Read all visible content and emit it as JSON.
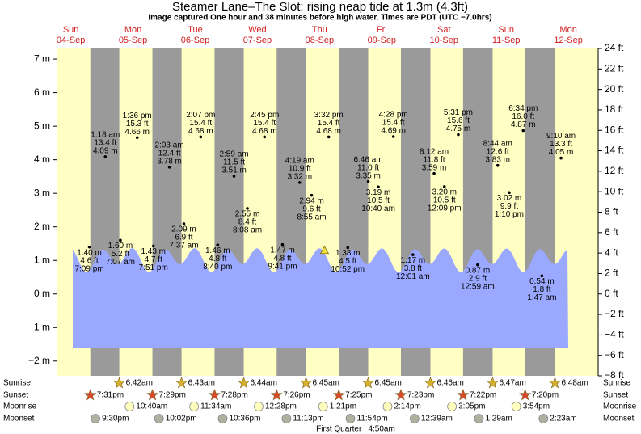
{
  "chart_data": {
    "type": "tide",
    "title": "Steamer Lane–The Slot: rising  neap tide at 1.3m (4.3ft)",
    "subtitle": "Image captured One hour and 38 minutes before high water. Times are PDT (UTC −7.0hrs)",
    "days": {
      "names": [
        "Sun",
        "Mon",
        "Tue",
        "Wed",
        "Thu",
        "Fri",
        "Sat",
        "Sun",
        "Mon"
      ],
      "dates": [
        "04-Sep",
        "05-Sep",
        "06-Sep",
        "07-Sep",
        "08-Sep",
        "09-Sep",
        "10-Sep",
        "11-Sep",
        "12-Sep"
      ],
      "x": [
        12,
        36,
        60,
        84,
        108,
        132,
        156,
        180,
        204
      ]
    },
    "xlim": [
      6.5,
      215.5
    ],
    "ylim": [
      -2.4384,
      7.3152
    ],
    "yticks": [
      {
        "value": -2,
        "label": "−2 m"
      },
      {
        "value": -1,
        "label": "−1 m"
      },
      {
        "value": 0,
        "label": "0 m"
      },
      {
        "value": 1,
        "label": "1 m"
      },
      {
        "value": 2,
        "label": "2 m"
      },
      {
        "value": 3,
        "label": "3 m"
      },
      {
        "value": 4,
        "label": "4 m"
      },
      {
        "value": 5,
        "label": "5 m"
      },
      {
        "value": 6,
        "label": "6 m"
      },
      {
        "value": 7,
        "label": "7 m"
      }
    ],
    "y2lim": [
      -8,
      24
    ],
    "y2ticks": [
      {
        "value": -8,
        "label": "−8 ft"
      },
      {
        "value": -6,
        "label": "−6 ft"
      },
      {
        "value": -4,
        "label": "−4 ft"
      },
      {
        "value": -2,
        "label": "−2 ft"
      },
      {
        "value": 0,
        "label": "0 ft"
      },
      {
        "value": 2,
        "label": "2 ft"
      },
      {
        "value": 4,
        "label": "4 ft"
      },
      {
        "value": 6,
        "label": "6 ft"
      },
      {
        "value": 8,
        "label": "8 ft"
      },
      {
        "value": 10,
        "label": "10 ft"
      },
      {
        "value": 12,
        "label": "12 ft"
      },
      {
        "value": 14,
        "label": "14 ft"
      },
      {
        "value": 16,
        "label": "16 ft"
      },
      {
        "value": 18,
        "label": "18 ft"
      },
      {
        "value": 20,
        "label": "20 ft"
      },
      {
        "value": 22,
        "label": "22 ft"
      },
      {
        "value": 24,
        "label": "24 ft"
      }
    ],
    "tides": {
      "x": [
        19.15,
        25.3,
        31.12,
        37.6,
        43.85,
        50.05,
        55.62,
        62.12,
        68.67,
        74.98,
        80.13,
        86.75,
        93.68,
        100.32,
        104.92,
        111.53,
        118.87,
        126.77,
        130.67,
        136.47,
        144.02,
        152.2,
        156.15,
        161.52,
        168.98,
        176.73,
        181.17,
        186.57,
        193.78,
        201.17
      ],
      "values": [
        1.4,
        4.09,
        1.6,
        4.66,
        1.43,
        3.78,
        2.09,
        4.68,
        1.46,
        3.51,
        2.55,
        4.68,
        1.47,
        3.32,
        2.94,
        4.68,
        1.38,
        3.35,
        3.19,
        4.69,
        1.17,
        3.59,
        3.2,
        4.75,
        0.87,
        3.83,
        3.02,
        4.87,
        0.54,
        4.05
      ],
      "value_labels": [
        "1.40 m",
        "4.09 m",
        "1.60 m",
        "4.66 m",
        "1.43 m",
        "3.78 m",
        "2.09 m",
        "4.68 m",
        "1.46 m",
        "3.51 m",
        "2.55 m",
        "4.68 m",
        "1.47 m",
        "3.32 m",
        "2.94 m",
        "4.68 m",
        "1.38 m",
        "3.35 m",
        "3.19 m",
        "4.69 m",
        "1.17 m",
        "3.59 m",
        "3.20 m",
        "4.75 m",
        "0.87 m",
        "3.83 m",
        "3.02 m",
        "4.87 m",
        "0.54 m",
        "4.05 m"
      ],
      "ft_labels": [
        "4.6 ft",
        "13.4 ft",
        "5.2 ft",
        "15.3 ft",
        "4.7 ft",
        "12.4 ft",
        "6.9 ft",
        "15.4 ft",
        "4.8 ft",
        "11.5 ft",
        "8.4 ft",
        "15.4 ft",
        "4.8 ft",
        "10.9 ft",
        "9.6 ft",
        "15.4 ft",
        "4.5 ft",
        "11.0 ft",
        "10.5 ft",
        "15.4 ft",
        "3.8 ft",
        "11.8 ft",
        "10.5 ft",
        "15.6 ft",
        "2.9 ft",
        "12.6 ft",
        "9.9 ft",
        "16.0 ft",
        "1.8 ft",
        "13.3 ft"
      ],
      "times": [
        "7:09 pm",
        "1:18 am",
        "7:07 am",
        "1:36 pm",
        "7:51 pm",
        "2:03 am",
        "7:37 am",
        "2:07 pm",
        "8:40 pm",
        "2:59 am",
        "8:08 am",
        "2:45 pm",
        "9:41 pm",
        "4:19 am",
        "8:55 am",
        "3:32 pm",
        "10:52 pm",
        "6:46 am",
        "10:40 am",
        "4:28 pm",
        "12:01 am",
        "8:12 am",
        "12:09 pm",
        "5:31 pm",
        "12:59 am",
        "8:44 am",
        "1:10 pm",
        "6:34 pm",
        "1:47 am",
        "9:10 am"
      ]
    },
    "now": {
      "x": 109.9,
      "value": 1.3
    },
    "rows": [
      {
        "name": "Sunrise",
        "color": "#d4b030",
        "x": [
          30.7,
          54.72,
          78.73,
          102.75,
          126.75,
          150.77,
          174.78,
          198.8
        ],
        "labels": [
          "6:42am",
          "6:43am",
          "6:44am",
          "6:45am",
          "6:45am",
          "6:46am",
          "6:47am",
          "6:48am"
        ]
      },
      {
        "name": "Sunset",
        "color": "#d84a2a",
        "x": [
          19.52,
          43.48,
          67.47,
          91.43,
          115.42,
          139.38,
          163.37,
          187.33
        ],
        "labels": [
          "7:31pm",
          "7:29pm",
          "7:28pm",
          "7:26pm",
          "7:25pm",
          "7:23pm",
          "7:22pm",
          "7:20pm"
        ]
      },
      {
        "name": "Moonrise",
        "color": "#ffffc0",
        "x": [
          34.67,
          59.57,
          84.47,
          109.35,
          134.23,
          159.08,
          183.9
        ],
        "labels": [
          "10:40am",
          "11:34am",
          "12:28pm",
          "1:21pm",
          "2:14pm",
          "3:05pm",
          "3:54pm"
        ]
      },
      {
        "name": "Moonset",
        "color": "#b0b0a0",
        "x": [
          21.5,
          46.03,
          70.6,
          95.22,
          119.9,
          144.65,
          169.48,
          194.38
        ],
        "labels": [
          "9:30pm",
          "10:02pm",
          "10:36pm",
          "11:13pm",
          "11:54pm",
          "12:39am",
          "1:29am",
          "2:23am"
        ]
      }
    ],
    "moon_phase": "First Quarter | 4:50am"
  }
}
